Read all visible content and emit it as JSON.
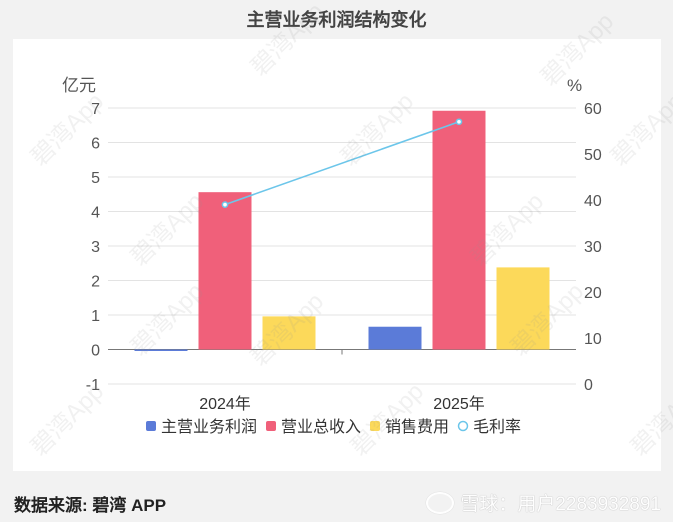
{
  "title": "主营业务利润结构变化",
  "footer": {
    "source_label": "数据来源: 碧湾 APP",
    "credit": "雪球：用户2283932891"
  },
  "watermark_text": "碧湾App",
  "chart_data": {
    "type": "bar",
    "categories": [
      "2024年",
      "2025年"
    ],
    "series": [
      {
        "name": "主营业务利润",
        "values": [
          -0.03,
          0.66
        ],
        "color": "#5b7bd8",
        "axis": "left",
        "kind": "bar"
      },
      {
        "name": "营业总收入",
        "values": [
          4.56,
          6.92
        ],
        "color": "#f0607a",
        "axis": "left",
        "kind": "bar"
      },
      {
        "name": "销售费用",
        "values": [
          0.96,
          2.38
        ],
        "color": "#fcd95a",
        "axis": "left",
        "kind": "bar"
      },
      {
        "name": "毛利率",
        "values": [
          39,
          57
        ],
        "color": "#6cc6ea",
        "axis": "right",
        "kind": "line"
      }
    ],
    "left_axis": {
      "unit": "亿元",
      "ylim": [
        -1,
        7
      ],
      "ticks": [
        -1,
        0,
        1,
        2,
        3,
        4,
        5,
        6,
        7
      ]
    },
    "right_axis": {
      "unit": "%",
      "ylim": [
        0,
        60
      ],
      "ticks": [
        0,
        10,
        20,
        30,
        40,
        50,
        60
      ]
    },
    "grid": true,
    "legend_position": "bottom"
  }
}
